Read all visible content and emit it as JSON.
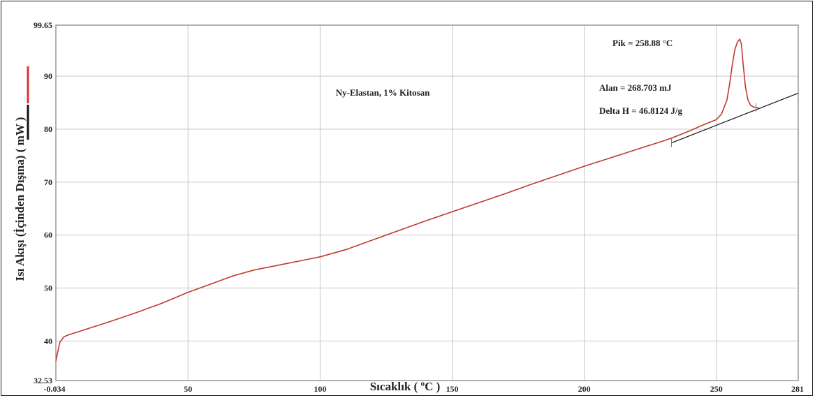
{
  "chart_data": {
    "type": "line",
    "xlabel": "Sıcaklık ( ºC )",
    "ylabel": "Isı Akışı (İçinden Dışına) ( mW )",
    "xlim": [
      -0.034,
      281
    ],
    "ylim": [
      32.53,
      99.65
    ],
    "x_ticks": [
      50,
      100,
      150,
      200,
      250
    ],
    "y_ticks": [
      40,
      50,
      60,
      70,
      80,
      90
    ],
    "x_edge_labels": [
      "-0.034",
      "281"
    ],
    "y_edge_labels": [
      "32.53",
      "99.65"
    ],
    "grid": true,
    "series": [
      {
        "color": "#c0392b",
        "x": [
          -0.034,
          0.5,
          1.5,
          3,
          5,
          10,
          20,
          30,
          40,
          50,
          60,
          67,
          75,
          85,
          95,
          100,
          110,
          120,
          130,
          140,
          150,
          160,
          170,
          180,
          190,
          200,
          210,
          220,
          230,
          233,
          240,
          245,
          250,
          252,
          254,
          255,
          256,
          257,
          258,
          258.88,
          259.5,
          260,
          261,
          262,
          263,
          264,
          265,
          266
        ],
        "y": [
          36.2,
          37.5,
          39.8,
          40.8,
          41.2,
          42.0,
          43.6,
          45.3,
          47.1,
          49.2,
          51.0,
          52.3,
          53.4,
          54.4,
          55.4,
          55.9,
          57.3,
          59.1,
          60.9,
          62.7,
          64.4,
          66.1,
          67.8,
          69.6,
          71.3,
          73.0,
          74.6,
          76.2,
          77.8,
          78.3,
          79.7,
          80.8,
          81.8,
          82.9,
          85.5,
          88.5,
          92.0,
          95.0,
          96.5,
          97.0,
          96.0,
          93.0,
          88.0,
          85.5,
          84.5,
          84.2,
          84.1,
          84.0
        ]
      },
      {
        "color": "#111111",
        "x": [
          233,
          281
        ],
        "y": [
          77.4,
          86.8
        ]
      }
    ],
    "annotations": {
      "sample": "Ny-Elastan, 1% Kitosan",
      "peak": "Pik = 258.88 °C",
      "area": "Alan = 268.703 mJ",
      "delta_h": "Delta H = 46.8124 J/g"
    },
    "legend_marks": [
      {
        "color": "#e03030"
      },
      {
        "color": "#111111"
      }
    ]
  }
}
